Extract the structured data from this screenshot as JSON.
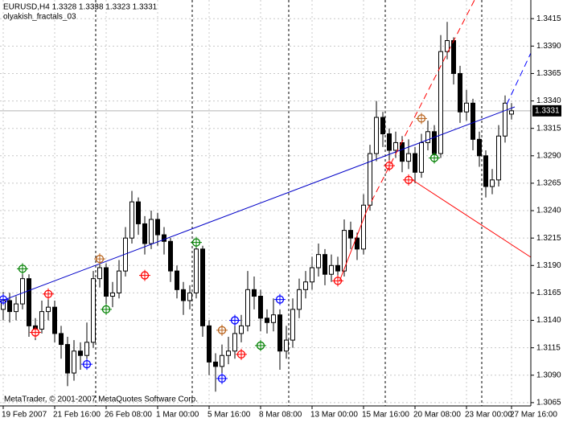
{
  "chart_data": {
    "type": "candlestick",
    "title": "EURUSD,H4  1.3328 1.3338 1.3323 1.3331",
    "subtitle": "olyakish_fractals_03",
    "footer": "MetaTrader, © 2001-2007 MetaQuotes Software Corp.",
    "categories": [
      "19 Feb 2007",
      null,
      null,
      null,
      null,
      null,
      null,
      null,
      "21 Feb 16:00",
      null,
      null,
      null,
      null,
      null,
      null,
      null,
      "26 Feb 08:00",
      null,
      null,
      null,
      null,
      null,
      null,
      null,
      "1 Mar 00:00",
      null,
      null,
      null,
      null,
      null,
      null,
      null,
      "5 Mar 16:00",
      null,
      null,
      null,
      null,
      null,
      null,
      null,
      "8 Mar 08:00",
      null,
      null,
      null,
      null,
      null,
      null,
      null,
      "13 Mar 00:00",
      null,
      null,
      null,
      null,
      null,
      null,
      null,
      "15 Mar 16:00",
      null,
      null,
      null,
      null,
      null,
      null,
      null,
      "20 Mar 08:00",
      null,
      null,
      null,
      null,
      null,
      null,
      null,
      "23 Mar 00:00",
      null,
      null,
      null,
      null,
      null,
      null,
      "27 Mar 16:00"
    ],
    "open": [
      1.315,
      1.3158,
      1.3148,
      1.3155,
      1.3178,
      1.3135,
      1.3132,
      1.3148,
      1.3152,
      1.3128,
      1.3118,
      1.3092,
      1.3112,
      1.3108,
      1.312,
      1.3178,
      1.3188,
      1.3162,
      1.3165,
      1.3185,
      1.3215,
      1.3248,
      1.3228,
      1.321,
      1.3232,
      1.3218,
      1.3212,
      1.3185,
      1.3168,
      1.3158,
      1.3165,
      1.3205,
      1.3135,
      1.3102,
      1.3098,
      1.3108,
      1.3112,
      1.3128,
      1.3135,
      1.3168,
      1.3162,
      1.3142,
      1.3138,
      1.3145,
      1.3112,
      1.3122,
      1.315,
      1.3168,
      1.3175,
      1.3188,
      1.32,
      1.3182,
      1.319,
      1.3185,
      1.3222,
      1.3215,
      1.3205,
      1.3245,
      1.3292,
      1.3325,
      1.331,
      1.3295,
      1.3302,
      1.3285,
      1.3292,
      1.3275,
      1.3302,
      1.3312,
      1.3292,
      1.3385,
      1.3395,
      1.3365,
      1.333,
      1.3338,
      1.3305,
      1.329,
      1.3262,
      1.3268,
      1.3308,
      1.3328
    ],
    "high": [
      1.3166,
      1.3165,
      1.3162,
      1.3188,
      1.3182,
      1.3142,
      1.3158,
      1.3165,
      1.3158,
      1.3135,
      1.3125,
      1.3122,
      1.312,
      1.3138,
      1.3185,
      1.3198,
      1.3192,
      1.3175,
      1.3195,
      1.3225,
      1.3258,
      1.3252,
      1.3235,
      1.324,
      1.3238,
      1.3225,
      1.3215,
      1.319,
      1.3175,
      1.3172,
      1.3212,
      1.3208,
      1.314,
      1.311,
      1.3118,
      1.3125,
      1.314,
      1.3145,
      1.3185,
      1.318,
      1.3168,
      1.315,
      1.316,
      1.315,
      1.3135,
      1.316,
      1.3178,
      1.3185,
      1.3198,
      1.321,
      1.3205,
      1.32,
      1.3198,
      1.3232,
      1.323,
      1.322,
      1.3255,
      1.33,
      1.334,
      1.333,
      1.3315,
      1.3312,
      1.3308,
      1.3305,
      1.3298,
      1.331,
      1.3322,
      1.3318,
      1.34,
      1.3412,
      1.3398,
      1.3372,
      1.335,
      1.3342,
      1.3312,
      1.3295,
      1.3278,
      1.3318,
      1.3345,
      1.3338
    ],
    "low": [
      1.314,
      1.3138,
      1.314,
      1.315,
      1.3125,
      1.3122,
      1.3128,
      1.314,
      1.312,
      1.3105,
      1.308,
      1.3085,
      1.3095,
      1.31,
      1.3115,
      1.317,
      1.315,
      1.3152,
      1.316,
      1.318,
      1.321,
      1.3218,
      1.32,
      1.3205,
      1.3208,
      1.32,
      1.3175,
      1.316,
      1.3145,
      1.315,
      1.316,
      1.3125,
      1.309,
      1.3075,
      1.309,
      1.31,
      1.3105,
      1.312,
      1.313,
      1.315,
      1.313,
      1.3128,
      1.313,
      1.3095,
      1.3105,
      1.3115,
      1.3142,
      1.316,
      1.3168,
      1.318,
      1.3172,
      1.3175,
      1.3175,
      1.318,
      1.3205,
      1.3195,
      1.32,
      1.324,
      1.3285,
      1.3298,
      1.3285,
      1.3288,
      1.3275,
      1.3278,
      1.3265,
      1.327,
      1.3295,
      1.3285,
      1.3288,
      1.3378,
      1.3355,
      1.332,
      1.3322,
      1.3295,
      1.328,
      1.3252,
      1.3255,
      1.3262,
      1.3302,
      1.3323
    ],
    "close": [
      1.3158,
      1.3148,
      1.3155,
      1.3178,
      1.3135,
      1.3132,
      1.3148,
      1.3152,
      1.3128,
      1.3118,
      1.3092,
      1.3112,
      1.3108,
      1.312,
      1.3178,
      1.3188,
      1.3162,
      1.3165,
      1.3185,
      1.3215,
      1.3248,
      1.3228,
      1.321,
      1.3232,
      1.3218,
      1.3212,
      1.3185,
      1.3168,
      1.3158,
      1.3165,
      1.3205,
      1.3135,
      1.3102,
      1.3098,
      1.3108,
      1.3112,
      1.3128,
      1.3135,
      1.3168,
      1.3162,
      1.3142,
      1.3138,
      1.3145,
      1.3112,
      1.3122,
      1.315,
      1.3168,
      1.3175,
      1.3188,
      1.32,
      1.3182,
      1.319,
      1.3185,
      1.3222,
      1.3215,
      1.3205,
      1.3245,
      1.3292,
      1.3325,
      1.331,
      1.3295,
      1.3302,
      1.3285,
      1.3292,
      1.3275,
      1.3302,
      1.3312,
      1.3292,
      1.3385,
      1.3395,
      1.3365,
      1.333,
      1.3338,
      1.3305,
      1.329,
      1.3262,
      1.3268,
      1.3308,
      1.3338,
      1.3331
    ],
    "fractals": [
      {
        "color": "#0000ff",
        "values": [
          1.3159,
          null,
          null,
          null,
          null,
          null,
          null,
          null,
          null,
          null,
          null,
          null,
          null,
          1.31,
          null,
          null,
          null,
          null,
          null,
          null,
          null,
          null,
          null,
          null,
          null,
          null,
          null,
          null,
          null,
          null,
          null,
          null,
          null,
          null,
          1.3087,
          null,
          1.314,
          null,
          null,
          null,
          null,
          null,
          null,
          1.3159,
          null,
          null,
          null,
          null,
          null,
          null,
          null,
          null,
          null,
          null,
          null,
          null,
          null,
          null,
          null,
          null,
          null,
          null,
          null,
          null,
          null,
          null,
          null,
          null,
          null,
          null,
          null,
          null,
          null,
          null,
          null,
          null,
          null,
          null,
          null,
          null
        ]
      },
      {
        "color": "#ff0000",
        "values": [
          null,
          null,
          null,
          null,
          null,
          1.3129,
          null,
          1.3164,
          null,
          null,
          null,
          null,
          null,
          null,
          null,
          null,
          null,
          null,
          null,
          null,
          null,
          null,
          1.3181,
          null,
          null,
          null,
          null,
          null,
          null,
          null,
          null,
          null,
          null,
          null,
          null,
          null,
          null,
          1.3109,
          null,
          null,
          null,
          null,
          null,
          null,
          null,
          null,
          null,
          null,
          null,
          null,
          null,
          null,
          1.3176,
          null,
          null,
          null,
          null,
          null,
          null,
          null,
          1.3281,
          null,
          null,
          1.3268,
          null,
          null,
          null,
          null,
          null,
          null,
          null,
          null,
          null,
          null,
          null,
          null,
          null,
          null,
          null,
          null
        ]
      },
      {
        "color": "#008000",
        "values": [
          null,
          null,
          null,
          1.3187,
          null,
          null,
          null,
          null,
          null,
          null,
          null,
          null,
          null,
          null,
          null,
          null,
          1.315,
          null,
          null,
          null,
          null,
          null,
          null,
          null,
          null,
          null,
          null,
          null,
          null,
          null,
          1.3211,
          null,
          null,
          null,
          null,
          null,
          null,
          null,
          null,
          null,
          1.3117,
          null,
          null,
          null,
          null,
          null,
          null,
          null,
          null,
          null,
          null,
          null,
          null,
          null,
          null,
          null,
          null,
          null,
          null,
          null,
          null,
          null,
          null,
          null,
          null,
          null,
          null,
          1.3288,
          null,
          null,
          null,
          null,
          null,
          null,
          null,
          null,
          null,
          null,
          null,
          null
        ]
      },
      {
        "color": "#b8621b",
        "values": [
          null,
          null,
          null,
          null,
          null,
          null,
          null,
          null,
          null,
          null,
          null,
          null,
          null,
          null,
          null,
          1.3196,
          null,
          null,
          null,
          null,
          null,
          null,
          null,
          null,
          null,
          null,
          null,
          null,
          null,
          null,
          null,
          null,
          null,
          null,
          1.3131,
          null,
          null,
          null,
          null,
          null,
          null,
          null,
          null,
          null,
          null,
          null,
          null,
          null,
          null,
          null,
          null,
          null,
          null,
          null,
          null,
          null,
          null,
          null,
          null,
          null,
          null,
          null,
          null,
          null,
          null,
          1.3324,
          null,
          null,
          null,
          null,
          null,
          null,
          null,
          null,
          null,
          null,
          null,
          null,
          null,
          null
        ]
      }
    ],
    "current_price": 1.3331,
    "ylim": [
      1.3062,
      1.3432
    ],
    "yticks": [
      1.3415,
      {
        "value": 1.339,
        "label": "1.3390"
      },
      1.3365,
      {
        "value": 1.334,
        "label": "1.3340"
      },
      1.3315,
      {
        "value": 1.329,
        "label": "1.3290"
      },
      1.3265,
      {
        "value": 1.324,
        "label": "1.3240"
      },
      1.3215,
      {
        "value": 1.319,
        "label": "1.3190"
      },
      1.3165,
      {
        "value": 1.314,
        "label": "1.3140"
      },
      1.3115,
      {
        "value": 1.309,
        "label": "1.3090"
      },
      1.3065
    ],
    "grid": true
  }
}
